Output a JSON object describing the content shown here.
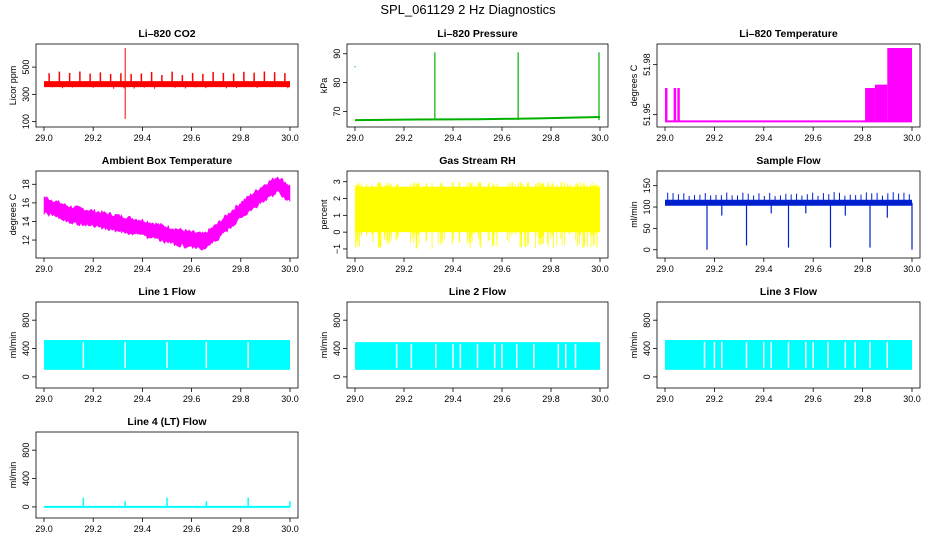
{
  "page": {
    "title": "SPL_061129  2 Hz Diagnostics"
  },
  "chart_data": [
    {
      "type": "line",
      "title": "Li–820 CO2",
      "ylabel": "Licor ppm",
      "color": "#ff0000",
      "x": [
        29.0,
        29.05,
        29.1,
        29.15,
        29.2,
        29.25,
        29.3,
        29.35,
        29.4,
        29.45,
        29.5,
        29.55,
        29.6,
        29.65,
        29.7,
        29.75,
        29.8,
        29.85,
        29.9,
        29.95,
        30.0
      ],
      "xticks": [
        29.0,
        29.2,
        29.4,
        29.6,
        29.8,
        30.0
      ],
      "xlim": [
        29.0,
        30.0
      ],
      "yticks": [
        100,
        300,
        500
      ],
      "yticklabels": [
        "100",
        "300",
        "500"
      ],
      "ylim": [
        90,
        640
      ],
      "baseline": 375,
      "band": 12,
      "spikes": [
        {
          "x": 29.33,
          "ymin": 120,
          "ymax": 640
        }
      ],
      "pulses": {
        "count": 24,
        "high": 470,
        "low": 340
      }
    },
    {
      "type": "line",
      "title": "Li–820 Pressure",
      "ylabel": "kPa",
      "color": "#00b000",
      "x": [
        29.0,
        29.25,
        29.5,
        29.75,
        30.0
      ],
      "xticks": [
        29.0,
        29.2,
        29.4,
        29.6,
        29.8,
        30.0
      ],
      "xlim": [
        29.0,
        30.0
      ],
      "yticks": [
        70,
        80,
        90
      ],
      "yticklabels": [
        "70",
        "80",
        "90"
      ],
      "ylim": [
        66,
        92
      ],
      "y": [
        67.0,
        67.2,
        67.3,
        67.6,
        68.1
      ],
      "band": 0.4,
      "spikes": [
        {
          "x": 29.33,
          "ymin": 67,
          "ymax": 90.5
        },
        {
          "x": 29.67,
          "ymin": 67,
          "ymax": 90.5
        },
        {
          "x": 30.0,
          "ymin": 67,
          "ymax": 90.5
        }
      ],
      "pulses": null
    },
    {
      "type": "area",
      "title": "Li–820 Temperature",
      "ylabel": "degrees C",
      "color": "#ff00ff",
      "xticks": [
        29.0,
        29.2,
        29.4,
        29.6,
        29.8,
        30.0
      ],
      "xlim": [
        29.0,
        30.0
      ],
      "yticks": [
        51.95,
        51.98
      ],
      "yticklabels": [
        "51.95",
        "51.98"
      ],
      "ylim": [
        51.945,
        51.99
      ],
      "steps": [
        [
          29.0,
          51.946
        ],
        [
          29.85,
          51.946
        ],
        [
          29.85,
          51.968
        ],
        [
          29.9,
          51.968
        ],
        [
          29.9,
          51.99
        ],
        [
          30.0,
          51.99
        ]
      ],
      "fills": [
        {
          "x0": 29.0,
          "x1": 29.01,
          "ymin": 51.946,
          "ymax": 51.966
        },
        {
          "x0": 29.035,
          "x1": 29.045,
          "ymin": 51.946,
          "ymax": 51.966
        },
        {
          "x0": 29.05,
          "x1": 29.06,
          "ymin": 51.946,
          "ymax": 51.966
        },
        {
          "x0": 29.81,
          "x1": 29.85,
          "ymin": 51.946,
          "ymax": 51.966
        },
        {
          "x0": 29.85,
          "x1": 29.9,
          "ymin": 51.946,
          "ymax": 51.968
        },
        {
          "x0": 29.9,
          "x1": 30.0,
          "ymin": 51.946,
          "ymax": 51.99
        }
      ]
    },
    {
      "type": "line",
      "title": "Ambient Box Temperature",
      "ylabel": "degrees C",
      "color": "#ff00ff",
      "x": [
        29.0,
        29.1,
        29.2,
        29.3,
        29.4,
        29.5,
        29.6,
        29.65,
        29.7,
        29.8,
        29.9,
        29.95,
        30.0
      ],
      "xticks": [
        29.0,
        29.2,
        29.4,
        29.6,
        29.8,
        30.0
      ],
      "xlim": [
        29.0,
        30.0
      ],
      "yticks": [
        12,
        14,
        16,
        18
      ],
      "yticklabels": [
        "12",
        "14",
        "16",
        "18"
      ],
      "ylim": [
        10.5,
        19.0
      ],
      "y": [
        15.8,
        14.8,
        14.3,
        13.8,
        13.3,
        12.6,
        12.0,
        11.8,
        12.8,
        15.2,
        17.2,
        18.0,
        17.0
      ],
      "band": 0.9
    },
    {
      "type": "area",
      "title": "Gas Stream RH",
      "ylabel": "percent",
      "color": "#ffff00",
      "xticks": [
        29.0,
        29.2,
        29.4,
        29.6,
        29.8,
        30.0
      ],
      "xlim": [
        29.0,
        30.0
      ],
      "yticks": [
        -1,
        0,
        1,
        2,
        3
      ],
      "yticklabels": [
        "−1",
        "0",
        "1",
        "2",
        "3"
      ],
      "ylim": [
        -1.3,
        3.4
      ],
      "low": 0.0,
      "high": 2.7,
      "min": -1.0,
      "max": 3.0
    },
    {
      "type": "line",
      "title": "Sample Flow",
      "ylabel": "ml/min",
      "color": "#0020d0",
      "xticks": [
        29.0,
        29.2,
        29.4,
        29.6,
        29.8,
        30.0
      ],
      "xlim": [
        29.0,
        30.0
      ],
      "yticks": [
        0,
        50,
        100,
        150
      ],
      "yticklabels": [
        "0",
        "50",
        "100",
        "150"
      ],
      "ylim": [
        -10,
        175
      ],
      "baseline": 110,
      "band": 6,
      "pulsehigh": 135,
      "dips": [
        [
          29.17,
          0
        ],
        [
          29.23,
          80
        ],
        [
          29.33,
          10
        ],
        [
          29.43,
          85
        ],
        [
          29.5,
          5
        ],
        [
          29.57,
          85
        ],
        [
          29.67,
          5
        ],
        [
          29.73,
          80
        ],
        [
          29.83,
          5
        ],
        [
          29.9,
          75
        ],
        [
          30.0,
          0
        ]
      ]
    },
    {
      "type": "area",
      "title": "Line 1 Flow",
      "ylabel": "ml/min",
      "color": "#00ffff",
      "xticks": [
        29.0,
        29.2,
        29.4,
        29.6,
        29.8,
        30.0
      ],
      "xlim": [
        29.0,
        30.0
      ],
      "yticks": [
        0,
        400,
        800
      ],
      "yticklabels": [
        "0",
        "400",
        "800"
      ],
      "ylim": [
        -100,
        1000
      ],
      "low": 100,
      "high": 520,
      "gaps": [
        29.16,
        29.33,
        29.5,
        29.66,
        29.83
      ]
    },
    {
      "type": "area",
      "title": "Line 2 Flow",
      "ylabel": "ml/min",
      "color": "#00ffff",
      "xticks": [
        29.0,
        29.2,
        29.4,
        29.6,
        29.8,
        30.0
      ],
      "xlim": [
        29.0,
        30.0
      ],
      "yticks": [
        0,
        400,
        800
      ],
      "yticklabels": [
        "0",
        "400",
        "800"
      ],
      "ylim": [
        -100,
        1000
      ],
      "low": 100,
      "high": 490,
      "gaps": [
        29.17,
        29.23,
        29.33,
        29.4,
        29.43,
        29.5,
        29.57,
        29.6,
        29.66,
        29.73,
        29.83,
        29.86,
        29.9
      ]
    },
    {
      "type": "area",
      "title": "Line 3 Flow",
      "ylabel": "ml/min",
      "color": "#00ffff",
      "xticks": [
        29.0,
        29.2,
        29.4,
        29.6,
        29.8,
        30.0
      ],
      "xlim": [
        29.0,
        30.0
      ],
      "yticks": [
        0,
        400,
        800
      ],
      "yticklabels": [
        "0",
        "400",
        "800"
      ],
      "ylim": [
        -100,
        1000
      ],
      "low": 100,
      "high": 520,
      "gaps": [
        29.16,
        29.2,
        29.23,
        29.33,
        29.4,
        29.43,
        29.5,
        29.57,
        29.6,
        29.66,
        29.73,
        29.77,
        29.83,
        29.9
      ]
    },
    {
      "type": "line",
      "title": "Line 4 (LT) Flow",
      "ylabel": "ml/min",
      "color": "#00ffff",
      "xticks": [
        29.0,
        29.2,
        29.4,
        29.6,
        29.8,
        30.0
      ],
      "xlim": [
        29.0,
        30.0
      ],
      "yticks": [
        0,
        400,
        800
      ],
      "yticklabels": [
        "0",
        "400",
        "800"
      ],
      "ylim": [
        -100,
        1000
      ],
      "baseline": 0,
      "spikes": [
        {
          "x": 29.16,
          "ymax": 130
        },
        {
          "x": 29.33,
          "ymax": 80
        },
        {
          "x": 29.5,
          "ymax": 130
        },
        {
          "x": 29.66,
          "ymax": 80
        },
        {
          "x": 29.83,
          "ymax": 130
        },
        {
          "x": 30.0,
          "ymax": 80
        }
      ]
    }
  ]
}
